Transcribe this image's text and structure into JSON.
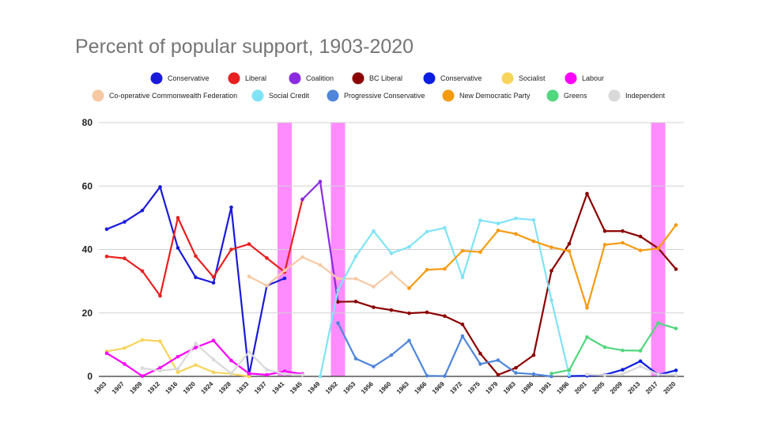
{
  "chart_data": {
    "type": "line",
    "title": "Percent of popular support, 1903-2020",
    "xlabel": "",
    "ylabel": "",
    "ylim": [
      0,
      80
    ],
    "yticks": [
      "0",
      "20",
      "40",
      "60",
      "80"
    ],
    "grid": true,
    "legend_position": "top",
    "categories": [
      "1903",
      "1907",
      "1909",
      "1912",
      "1916",
      "1920",
      "1924",
      "1928",
      "1933",
      "1937",
      "1941",
      "1945",
      "1949",
      "1952",
      "1953",
      "1956",
      "1960",
      "1963",
      "1966",
      "1969",
      "1972",
      "1975",
      "1979",
      "1983",
      "1986",
      "1991",
      "1996",
      "2001",
      "2005",
      "2009",
      "2013",
      "2017",
      "2020"
    ],
    "highlight_bands": [
      {
        "category": "1941",
        "color": "#ff66ff"
      },
      {
        "category": "1952",
        "color": "#ff66ff"
      },
      {
        "category": "2017",
        "color": "#ff66ff"
      }
    ],
    "series": [
      {
        "name": "Conservative",
        "color": "#1a1adb",
        "values": [
          46.4,
          48.7,
          52.3,
          59.7,
          40.5,
          31.2,
          29.5,
          53.3,
          0.4,
          28.6,
          30.9,
          null,
          null,
          null,
          null,
          null,
          null,
          null,
          null,
          null,
          null,
          null,
          null,
          null,
          null,
          null,
          null,
          null,
          null,
          null,
          null,
          null,
          null
        ]
      },
      {
        "name": "Liberal",
        "color": "#e82020",
        "values": [
          37.8,
          37.2,
          33.2,
          25.4,
          50.0,
          37.9,
          31.3,
          40.0,
          41.7,
          37.3,
          32.9,
          55.8,
          null,
          null,
          null,
          null,
          null,
          null,
          null,
          null,
          null,
          null,
          null,
          null,
          null,
          null,
          null,
          null,
          null,
          null,
          null,
          null,
          null
        ]
      },
      {
        "name": "Coalition",
        "color": "#8a2be2",
        "values": [
          null,
          null,
          null,
          null,
          null,
          null,
          null,
          null,
          null,
          null,
          null,
          55.8,
          61.4,
          23.5,
          null,
          null,
          null,
          null,
          null,
          null,
          null,
          null,
          null,
          null,
          null,
          null,
          null,
          null,
          null,
          null,
          null,
          null,
          null
        ]
      },
      {
        "name": "BC Liberal",
        "color": "#8b0000",
        "values": [
          null,
          null,
          null,
          null,
          null,
          null,
          null,
          null,
          null,
          null,
          null,
          null,
          null,
          23.5,
          23.6,
          21.8,
          20.9,
          19.9,
          20.2,
          19.0,
          16.4,
          7.2,
          0.5,
          2.7,
          6.7,
          33.3,
          41.8,
          57.6,
          45.8,
          45.8,
          44.1,
          40.4,
          33.8
        ]
      },
      {
        "name": "Conservative",
        "color": "#0b1de0",
        "values": [
          null,
          null,
          null,
          null,
          null,
          null,
          null,
          null,
          null,
          null,
          null,
          null,
          null,
          null,
          null,
          null,
          null,
          null,
          null,
          null,
          null,
          null,
          null,
          null,
          null,
          null,
          0.1,
          0.2,
          0.5,
          2.1,
          4.8,
          0.5,
          1.9
        ]
      },
      {
        "name": "Socialist",
        "color": "#f7d45a",
        "values": [
          7.9,
          8.9,
          11.5,
          11.1,
          1.3,
          3.6,
          1.3,
          0.8,
          0.0,
          null,
          null,
          null,
          null,
          null,
          null,
          null,
          null,
          null,
          null,
          null,
          null,
          null,
          null,
          null,
          null,
          null,
          null,
          null,
          null,
          null,
          null,
          null,
          null
        ]
      },
      {
        "name": "Labour",
        "color": "#ff00ff",
        "values": [
          7.3,
          3.9,
          0.1,
          2.7,
          6.2,
          9.1,
          11.3,
          5.0,
          0.9,
          0.5,
          1.6,
          0.8,
          null,
          null,
          null,
          null,
          null,
          null,
          null,
          null,
          null,
          null,
          null,
          null,
          null,
          null,
          null,
          null,
          null,
          null,
          null,
          null,
          null
        ]
      },
      {
        "name": "Co-operative Commonwealth Federation",
        "color": "#f6c9a3",
        "values": [
          null,
          null,
          null,
          null,
          null,
          null,
          null,
          null,
          31.5,
          28.6,
          33.4,
          37.6,
          35.1,
          30.8,
          30.8,
          28.3,
          32.7,
          27.8,
          null,
          null,
          null,
          null,
          null,
          null,
          null,
          null,
          null,
          null,
          null,
          null,
          null,
          null,
          null
        ]
      },
      {
        "name": "Social Credit",
        "color": "#7fe3f5",
        "values": [
          null,
          null,
          null,
          null,
          null,
          null,
          null,
          null,
          null,
          null,
          null,
          null,
          0.0,
          27.2,
          37.8,
          45.8,
          38.8,
          40.8,
          45.6,
          46.8,
          31.2,
          49.2,
          48.2,
          49.8,
          49.3,
          24.0,
          0.4,
          null,
          null,
          null,
          null,
          null,
          null
        ]
      },
      {
        "name": "Progressive Conservative",
        "color": "#4f86d9",
        "values": [
          null,
          null,
          null,
          null,
          null,
          null,
          null,
          null,
          null,
          null,
          null,
          null,
          null,
          16.8,
          5.6,
          3.1,
          6.7,
          11.3,
          0.2,
          0.1,
          12.7,
          3.9,
          5.1,
          1.1,
          0.7,
          0.0,
          null,
          null,
          null,
          null,
          null,
          null,
          null
        ]
      },
      {
        "name": "New Democratic Party",
        "color": "#f59b11",
        "values": [
          null,
          null,
          null,
          null,
          null,
          null,
          null,
          null,
          null,
          null,
          null,
          null,
          null,
          null,
          null,
          null,
          null,
          27.8,
          33.6,
          33.9,
          39.6,
          39.2,
          46.0,
          44.9,
          42.6,
          40.7,
          39.5,
          21.6,
          41.5,
          42.1,
          39.7,
          40.3,
          47.7
        ]
      },
      {
        "name": "Greens",
        "color": "#52d67e",
        "values": [
          null,
          null,
          null,
          null,
          null,
          null,
          null,
          null,
          null,
          null,
          null,
          null,
          null,
          null,
          null,
          null,
          null,
          null,
          null,
          null,
          null,
          null,
          null,
          null,
          null,
          0.9,
          2.0,
          12.4,
          9.2,
          8.2,
          8.1,
          16.8,
          15.1
        ]
      },
      {
        "name": "Independent",
        "color": "#d9d9d9",
        "values": [
          null,
          null,
          2.6,
          1.8,
          2.4,
          10.4,
          5.3,
          0.9,
          7.7,
          2.1,
          0.8,
          0.5,
          null,
          null,
          null,
          null,
          null,
          null,
          null,
          null,
          null,
          null,
          null,
          null,
          null,
          null,
          null,
          0.6,
          0.4,
          0.7,
          3.2,
          0.6,
          0.5
        ]
      }
    ]
  }
}
